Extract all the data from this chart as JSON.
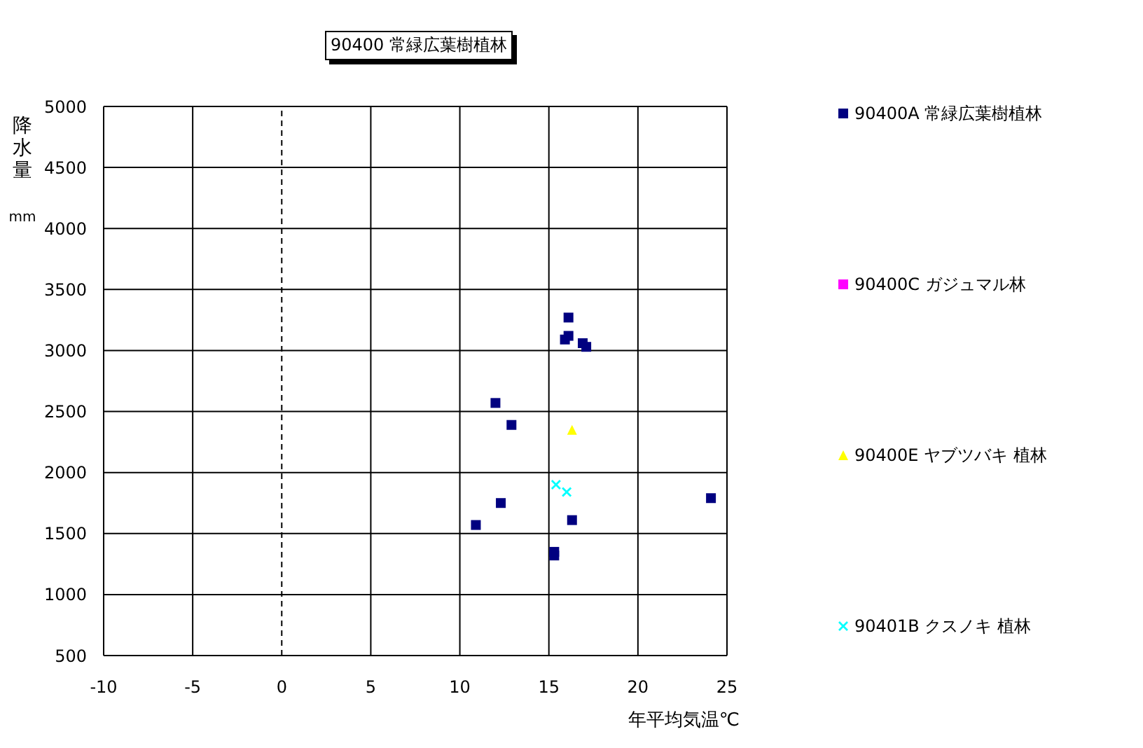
{
  "chart_data": {
    "type": "scatter",
    "title": "90400 常緑広葉樹植林",
    "xlabel": "年平均気温℃",
    "ylabel": "降水量 mm",
    "xlim": [
      -10,
      25
    ],
    "xticks": [
      -10,
      -5,
      0,
      5,
      10,
      15,
      20,
      25
    ],
    "ylim": [
      500,
      5000
    ],
    "yticks": [
      500,
      1000,
      1500,
      2000,
      2500,
      3000,
      3500,
      4000,
      4500,
      5000
    ],
    "grid": true,
    "legend": "right",
    "marker": "square",
    "ref_lines": [
      {
        "axis": "x",
        "value": 0,
        "line_style": "dashed",
        "color": "#000000"
      }
    ],
    "series": [
      {
        "name": "90400A 常緑広葉樹植林",
        "color": "#000080",
        "x": [
          16.1,
          16.1,
          15.9,
          16.9,
          17.1,
          12.0,
          12.9,
          12.3,
          10.9,
          16.3,
          15.3,
          15.3,
          24.1
        ],
        "values": [
          3270,
          3120,
          3090,
          3060,
          3030,
          2570,
          2390,
          1750,
          1570,
          1610,
          1350,
          1320,
          1790
        ]
      },
      {
        "name": "90400C ガジュマル林",
        "color": "#ff00ff"
      },
      {
        "name": "90400E ヤブツバキ 植林",
        "color": "#ffff00",
        "marker": "triangle",
        "x": [
          16.3
        ],
        "values": [
          2350
        ]
      },
      {
        "name": "90401B クスノキ 植林",
        "color": "#00ffff",
        "marker": "cross",
        "x": [
          15.4,
          16.0
        ],
        "values": [
          1900,
          1840
        ]
      }
    ]
  }
}
